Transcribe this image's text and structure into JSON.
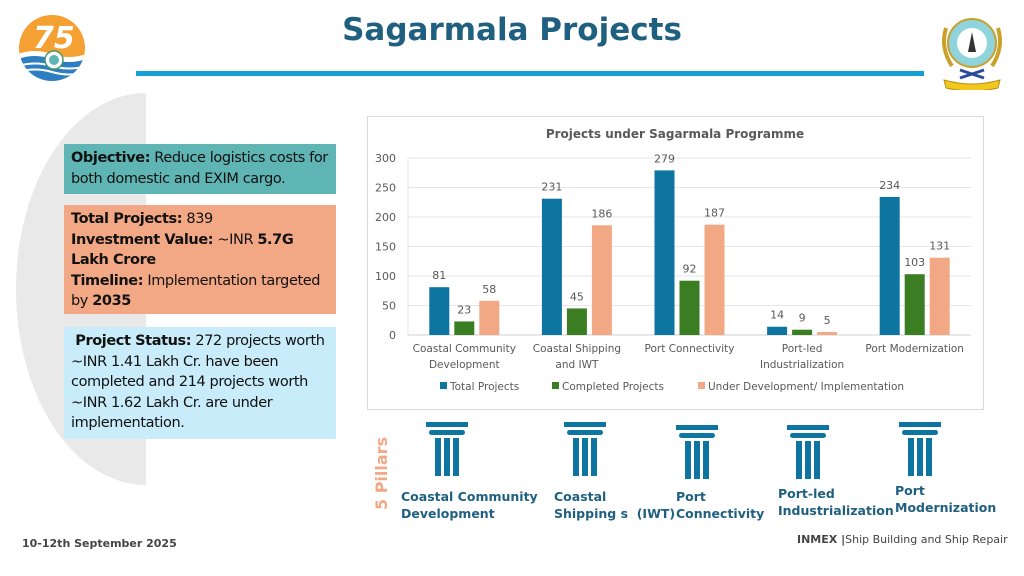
{
  "header": {
    "title": "Sagarmala Projects",
    "left_logo": "75-years-anniversary-logo",
    "right_logo": "directorate-general-of-shipping-emblem",
    "accent_color": "#15a0d8",
    "title_color": "#1f5f80"
  },
  "info": {
    "objective": {
      "label": "Objective:",
      "text": " Reduce logistics costs for both domestic and EXIM cargo.",
      "bg": "#5fb5b3"
    },
    "summary": {
      "total_label": "Total Projects:",
      "total_value": " 839",
      "investment_label": "Investment Value:",
      "investment_prefix": " ~INR ",
      "investment_value": "5.7G Lakh Crore",
      "timeline_label": "Timeline:",
      "timeline_text": " Implementation targeted by ",
      "timeline_year": "2035",
      "bg": "#f2a884"
    },
    "status": {
      "label": "Project Status:",
      "text": " 272 projects worth ~INR 1.41 Lakh Cr. have been completed and 214 projects worth ~INR 1.62 Lakh Cr. are under implementation.",
      "bg": "#c9ecfa"
    }
  },
  "chart_data": {
    "type": "bar",
    "title": "Projects under Sagarmala Programme",
    "categories": [
      [
        "Coastal Community",
        "Development"
      ],
      [
        "Coastal Shipping",
        "and IWT"
      ],
      [
        "Port Connectivity"
      ],
      [
        "Port-led",
        "Industrialization"
      ],
      [
        "Port Modernization"
      ]
    ],
    "series": [
      {
        "name": "Total Projects",
        "color": "#0e75a1",
        "values": [
          81,
          231,
          279,
          14,
          234
        ]
      },
      {
        "name": "Completed Projects",
        "color": "#3a7d23",
        "values": [
          23,
          45,
          92,
          9,
          103
        ]
      },
      {
        "name": "Under Development/ Implementation",
        "color": "#f2a884",
        "values": [
          58,
          186,
          187,
          5,
          131
        ]
      }
    ],
    "ylim": [
      0,
      300
    ],
    "yticks": [
      0,
      50,
      100,
      150,
      200,
      250,
      300
    ],
    "xlabel": "",
    "ylabel": "",
    "grid": true,
    "data_labels": true,
    "legend": "bottom"
  },
  "pillars": {
    "heading": "5 Pillars",
    "color": "#0e75a1",
    "items": [
      {
        "lines": [
          "Coastal Community",
          "Development"
        ]
      },
      {
        "lines": [
          "Coastal",
          "Shipping s  (IWT)"
        ]
      },
      {
        "lines": [
          "Port",
          "Connectivity"
        ]
      },
      {
        "lines": [
          "Port-led",
          "Industrialization"
        ]
      },
      {
        "lines": [
          "Port",
          "Modernization"
        ]
      }
    ]
  },
  "footer": {
    "date": "10-12th September 2025",
    "event": "INMEX",
    "separator": " |",
    "subtitle": "Ship Building and Ship Repair"
  }
}
